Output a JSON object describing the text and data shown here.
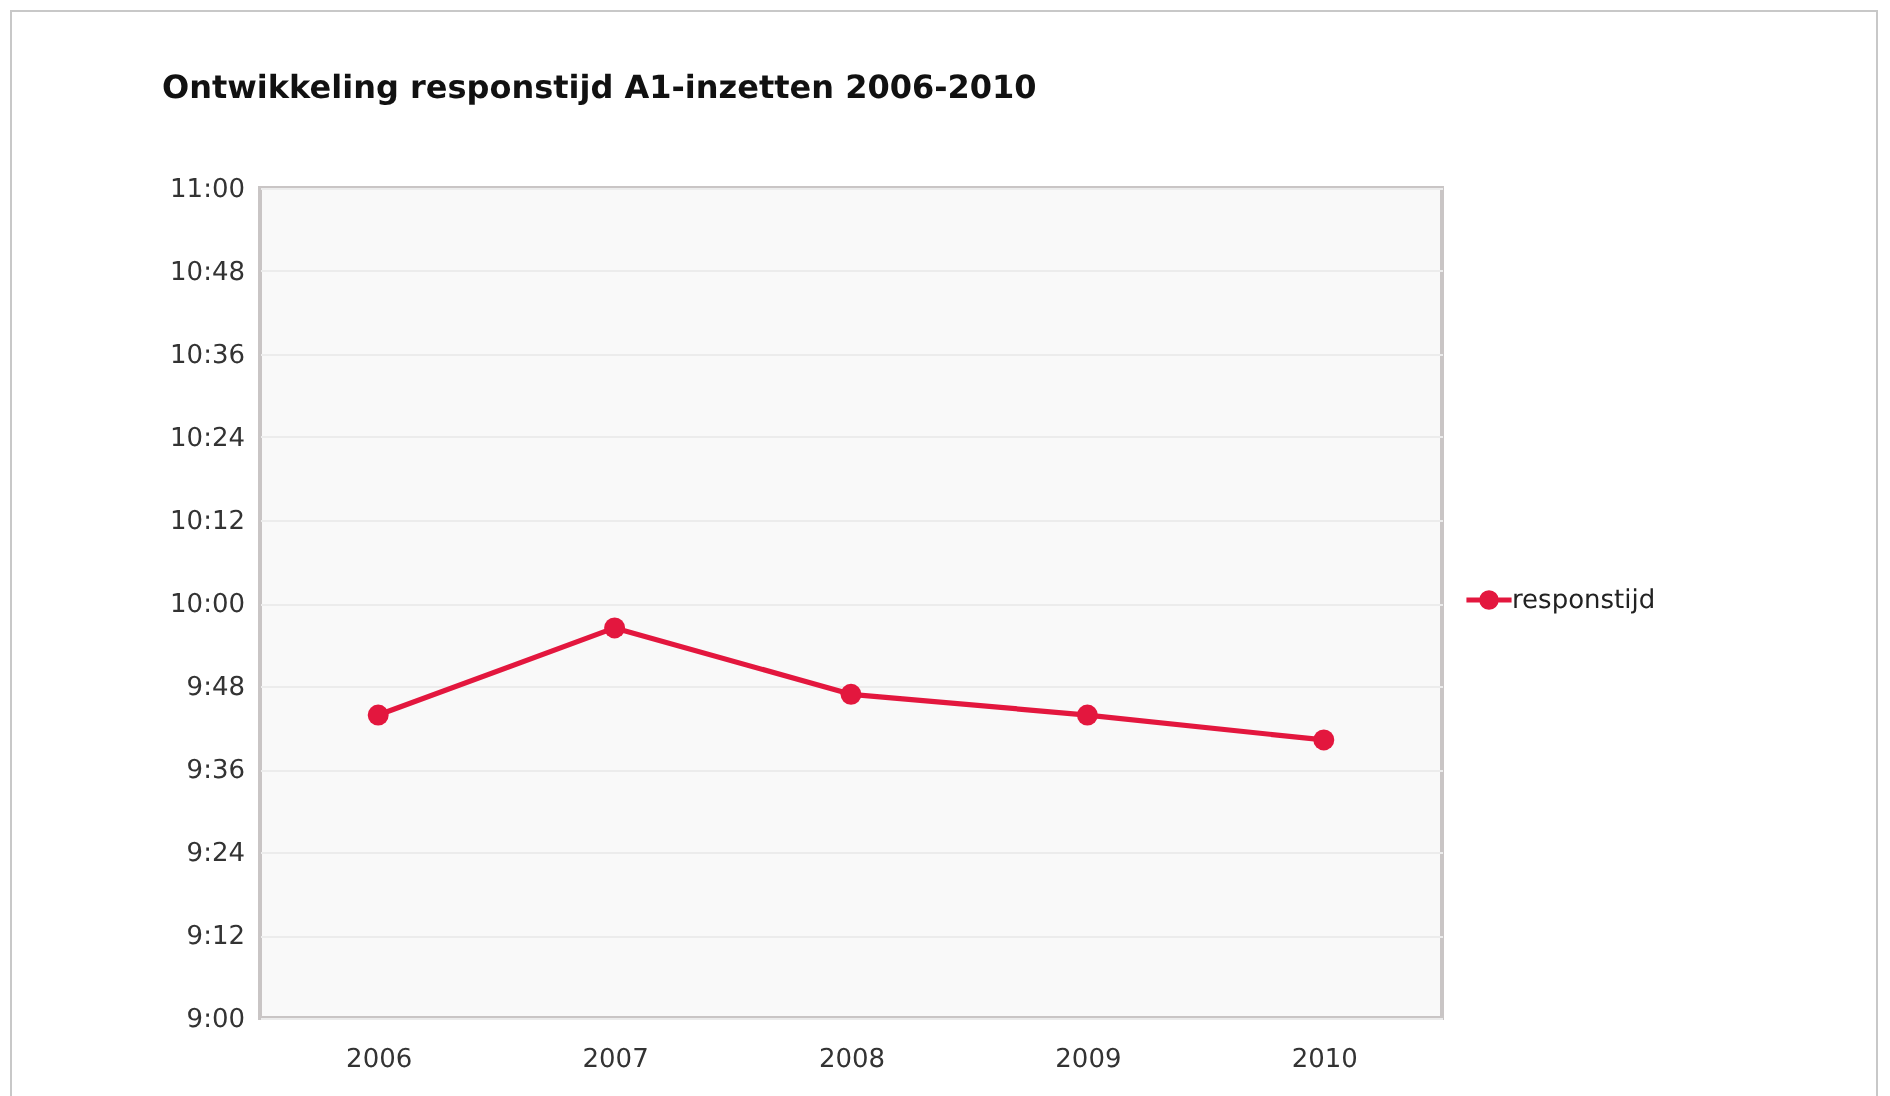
{
  "chart_data": {
    "type": "line",
    "title": "Ontwikkeling responstijd A1-inzetten 2006-2010",
    "categories": [
      "2006",
      "2007",
      "2008",
      "2009",
      "2010"
    ],
    "series": [
      {
        "name": "responstijd",
        "color": "#e3173e",
        "values": [
          9.73,
          9.94,
          9.78,
          9.73,
          9.67
        ]
      }
    ],
    "ylim": [
      9,
      11
    ],
    "yticks": [
      {
        "value": 9,
        "label": "9:00"
      },
      {
        "value": 9.2,
        "label": "9:12"
      },
      {
        "value": 9.4,
        "label": "9:24"
      },
      {
        "value": 9.6,
        "label": "9:36"
      },
      {
        "value": 9.8,
        "label": "9:48"
      },
      {
        "value": 10,
        "label": "10:00"
      },
      {
        "value": 10.2,
        "label": "10:12"
      },
      {
        "value": 10.4,
        "label": "10:24"
      },
      {
        "value": 10.6,
        "label": "10:36"
      },
      {
        "value": 10.8,
        "label": "10:48"
      },
      {
        "value": 11,
        "label": "11:00"
      }
    ],
    "grid": "y",
    "legend": "right",
    "marker": "circle",
    "line_style": "solid"
  }
}
